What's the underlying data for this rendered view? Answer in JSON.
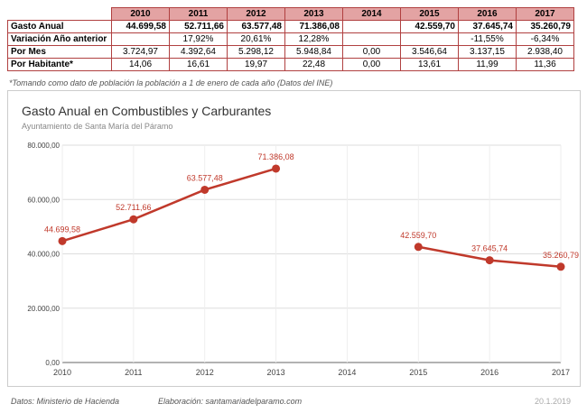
{
  "table": {
    "years": [
      "2010",
      "2011",
      "2012",
      "2013",
      "2014",
      "2015",
      "2016",
      "2017"
    ],
    "rows": [
      {
        "label": "Gasto Anual",
        "values": [
          "44.699,58",
          "52.711,66",
          "63.577,48",
          "71.386,08",
          "",
          "42.559,70",
          "37.645,74",
          "35.260,79"
        ]
      },
      {
        "label": "Variación Año anterior",
        "values": [
          "",
          "17,92%",
          "20,61%",
          "12,28%",
          "",
          "",
          "-11,55%",
          "-6,34%"
        ]
      },
      {
        "label": "Por Mes",
        "values": [
          "3.724,97",
          "4.392,64",
          "5.298,12",
          "5.948,84",
          "0,00",
          "3.546,64",
          "3.137,15",
          "2.938,40"
        ]
      },
      {
        "label": "Por Habitante*",
        "values": [
          "14,06",
          "16,61",
          "19,97",
          "22,48",
          "0,00",
          "13,61",
          "11,99",
          "11,36"
        ]
      }
    ]
  },
  "note": "*Tomando como dato de población la población a 1 de enero de cada año (Datos del INE)",
  "chart_data": {
    "type": "line",
    "title": "Gasto Anual en Combustibles y Carburantes",
    "subtitle": "Ayuntamiento de Santa María del Páramo",
    "categories": [
      "2010",
      "2011",
      "2012",
      "2013",
      "2014",
      "2015",
      "2016",
      "2017"
    ],
    "series": [
      {
        "values": [
          44699.58,
          52711.66,
          63577.48,
          71386.08,
          null,
          42559.7,
          37645.74,
          35260.79
        ],
        "labels": [
          "44.699,58",
          "52.711,66",
          "63.577,48",
          "71.386,08",
          "",
          "42.559,70",
          "37.645,74",
          "35.260,79"
        ]
      }
    ],
    "ylim": [
      0,
      80000
    ],
    "yticks": [
      0,
      20000,
      40000,
      60000,
      80000
    ],
    "ytick_labels": [
      "0,00",
      "20.000,00",
      "40.000,00",
      "60.000,00",
      "80.000,00"
    ],
    "grid": true,
    "line_color": "#c0392b"
  },
  "footer": {
    "source": "Datos: Ministerio de Hacienda",
    "credit": "Elaboración: santamariadelparamo.com",
    "date": "20.1.2019"
  }
}
